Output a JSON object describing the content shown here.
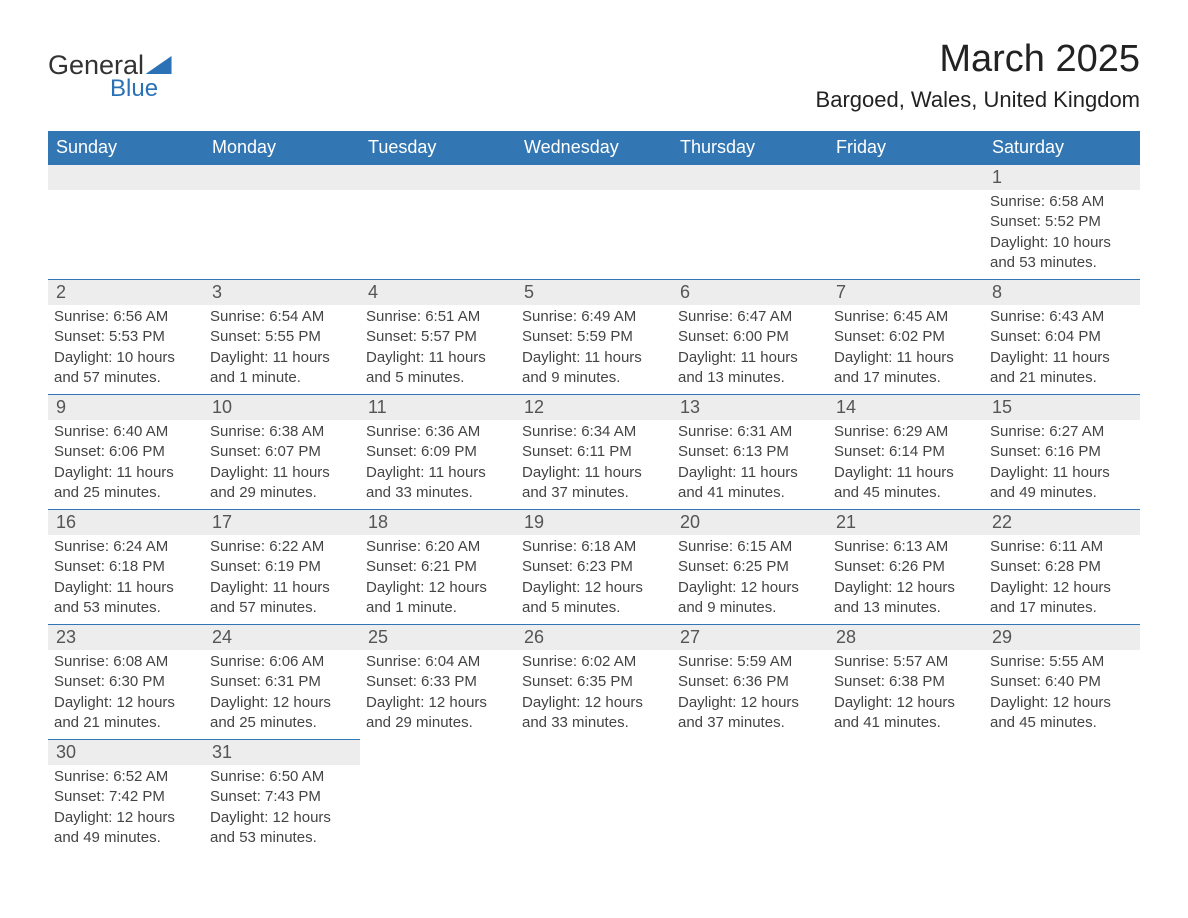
{
  "logo": {
    "text1": "General",
    "text2": "Blue"
  },
  "title": "March 2025",
  "location": "Bargoed, Wales, United Kingdom",
  "header_bg": "#3277b3",
  "row_border": "#3277b3",
  "daynum_bg": "#ededed",
  "weekdays": [
    "Sunday",
    "Monday",
    "Tuesday",
    "Wednesday",
    "Thursday",
    "Friday",
    "Saturday"
  ],
  "labels": {
    "sunrise": "Sunrise: ",
    "sunset": "Sunset: ",
    "daylight": "Daylight: "
  },
  "weeks": [
    [
      null,
      null,
      null,
      null,
      null,
      null,
      {
        "n": "1",
        "sunrise": "6:58 AM",
        "sunset": "5:52 PM",
        "daylight": "10 hours and 53 minutes."
      }
    ],
    [
      {
        "n": "2",
        "sunrise": "6:56 AM",
        "sunset": "5:53 PM",
        "daylight": "10 hours and 57 minutes."
      },
      {
        "n": "3",
        "sunrise": "6:54 AM",
        "sunset": "5:55 PM",
        "daylight": "11 hours and 1 minute."
      },
      {
        "n": "4",
        "sunrise": "6:51 AM",
        "sunset": "5:57 PM",
        "daylight": "11 hours and 5 minutes."
      },
      {
        "n": "5",
        "sunrise": "6:49 AM",
        "sunset": "5:59 PM",
        "daylight": "11 hours and 9 minutes."
      },
      {
        "n": "6",
        "sunrise": "6:47 AM",
        "sunset": "6:00 PM",
        "daylight": "11 hours and 13 minutes."
      },
      {
        "n": "7",
        "sunrise": "6:45 AM",
        "sunset": "6:02 PM",
        "daylight": "11 hours and 17 minutes."
      },
      {
        "n": "8",
        "sunrise": "6:43 AM",
        "sunset": "6:04 PM",
        "daylight": "11 hours and 21 minutes."
      }
    ],
    [
      {
        "n": "9",
        "sunrise": "6:40 AM",
        "sunset": "6:06 PM",
        "daylight": "11 hours and 25 minutes."
      },
      {
        "n": "10",
        "sunrise": "6:38 AM",
        "sunset": "6:07 PM",
        "daylight": "11 hours and 29 minutes."
      },
      {
        "n": "11",
        "sunrise": "6:36 AM",
        "sunset": "6:09 PM",
        "daylight": "11 hours and 33 minutes."
      },
      {
        "n": "12",
        "sunrise": "6:34 AM",
        "sunset": "6:11 PM",
        "daylight": "11 hours and 37 minutes."
      },
      {
        "n": "13",
        "sunrise": "6:31 AM",
        "sunset": "6:13 PM",
        "daylight": "11 hours and 41 minutes."
      },
      {
        "n": "14",
        "sunrise": "6:29 AM",
        "sunset": "6:14 PM",
        "daylight": "11 hours and 45 minutes."
      },
      {
        "n": "15",
        "sunrise": "6:27 AM",
        "sunset": "6:16 PM",
        "daylight": "11 hours and 49 minutes."
      }
    ],
    [
      {
        "n": "16",
        "sunrise": "6:24 AM",
        "sunset": "6:18 PM",
        "daylight": "11 hours and 53 minutes."
      },
      {
        "n": "17",
        "sunrise": "6:22 AM",
        "sunset": "6:19 PM",
        "daylight": "11 hours and 57 minutes."
      },
      {
        "n": "18",
        "sunrise": "6:20 AM",
        "sunset": "6:21 PM",
        "daylight": "12 hours and 1 minute."
      },
      {
        "n": "19",
        "sunrise": "6:18 AM",
        "sunset": "6:23 PM",
        "daylight": "12 hours and 5 minutes."
      },
      {
        "n": "20",
        "sunrise": "6:15 AM",
        "sunset": "6:25 PM",
        "daylight": "12 hours and 9 minutes."
      },
      {
        "n": "21",
        "sunrise": "6:13 AM",
        "sunset": "6:26 PM",
        "daylight": "12 hours and 13 minutes."
      },
      {
        "n": "22",
        "sunrise": "6:11 AM",
        "sunset": "6:28 PM",
        "daylight": "12 hours and 17 minutes."
      }
    ],
    [
      {
        "n": "23",
        "sunrise": "6:08 AM",
        "sunset": "6:30 PM",
        "daylight": "12 hours and 21 minutes."
      },
      {
        "n": "24",
        "sunrise": "6:06 AM",
        "sunset": "6:31 PM",
        "daylight": "12 hours and 25 minutes."
      },
      {
        "n": "25",
        "sunrise": "6:04 AM",
        "sunset": "6:33 PM",
        "daylight": "12 hours and 29 minutes."
      },
      {
        "n": "26",
        "sunrise": "6:02 AM",
        "sunset": "6:35 PM",
        "daylight": "12 hours and 33 minutes."
      },
      {
        "n": "27",
        "sunrise": "5:59 AM",
        "sunset": "6:36 PM",
        "daylight": "12 hours and 37 minutes."
      },
      {
        "n": "28",
        "sunrise": "5:57 AM",
        "sunset": "6:38 PM",
        "daylight": "12 hours and 41 minutes."
      },
      {
        "n": "29",
        "sunrise": "5:55 AM",
        "sunset": "6:40 PM",
        "daylight": "12 hours and 45 minutes."
      }
    ],
    [
      {
        "n": "30",
        "sunrise": "6:52 AM",
        "sunset": "7:42 PM",
        "daylight": "12 hours and 49 minutes."
      },
      {
        "n": "31",
        "sunrise": "6:50 AM",
        "sunset": "7:43 PM",
        "daylight": "12 hours and 53 minutes."
      },
      null,
      null,
      null,
      null,
      null
    ]
  ]
}
